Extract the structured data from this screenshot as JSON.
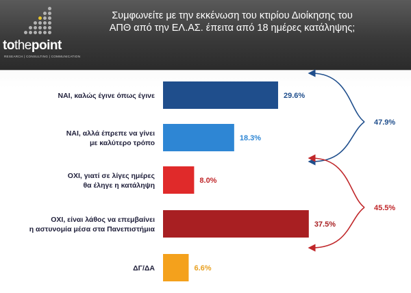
{
  "header": {
    "brand_bold": "to",
    "brand_mid": "the",
    "brand_end": "point",
    "tagline": "RESEARCH | CONSULTING | COMMUNICATION",
    "title_line1": "Συμφωνείτε με την εκκένωση του κτιρίου Διοίκησης του",
    "title_line2": "ΑΠΘ από την ΕΛ.ΑΣ. έπειτα από 18 ημέρες κατάληψης;"
  },
  "chart_data": {
    "type": "bar",
    "orientation": "horizontal",
    "categories": [
      [
        "ΝΑΙ, καλώς έγινε όπως έγινε"
      ],
      [
        "ΝΑΙ, αλλά έπρεπε να γίνει",
        "με καλύτερο τρόπο"
      ],
      [
        "ΟΧΙ, γιατί σε λίγες ημέρες",
        "θα έληγε η κατάληψη"
      ],
      [
        "ΟΧΙ, είναι  λάθος να επεμβαίνει",
        "η αστυνομία μέσα στα Πανεπιστήμια"
      ],
      [
        "ΔΓ/ΔΑ"
      ]
    ],
    "values": [
      29.6,
      18.3,
      8.0,
      37.5,
      6.6
    ],
    "value_labels": [
      "29.6%",
      "18.3%",
      "8.0%",
      "37.5%",
      "6.6%"
    ],
    "colors": [
      "#1f4e8c",
      "#2e86d4",
      "#e02a2a",
      "#a81f22",
      "#f4a11c"
    ],
    "label_colors": [
      "#1f4e8c",
      "#2e86d4",
      "#c0272a",
      "#a81f22",
      "#e8a021"
    ],
    "groups": [
      {
        "label": "47.9%",
        "from": 0,
        "to": 1,
        "color": "#1f4e8c"
      },
      {
        "label": "45.5%",
        "from": 2,
        "to": 3,
        "color": "#c0272a"
      }
    ],
    "xlim": [
      0,
      40
    ]
  }
}
